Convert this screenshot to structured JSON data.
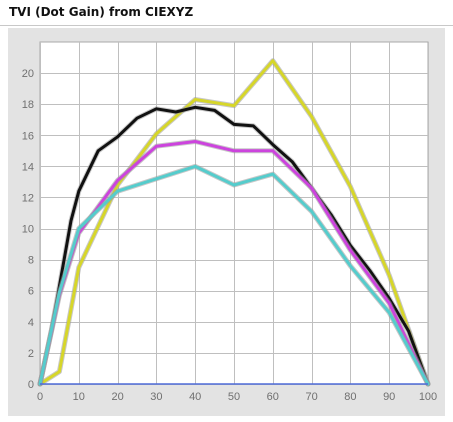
{
  "header": {
    "title": "TVI (Dot Gain) from CIEXYZ"
  },
  "colors": {
    "background": "#e3e3e3",
    "plot_area": "#ffffff",
    "grid": "#bfbfbf",
    "baseline": "#4f6bd8"
  },
  "chart_data": {
    "type": "line",
    "title": "TVI (Dot Gain) from CIEXYZ",
    "xlabel": "",
    "ylabel": "",
    "xlim": [
      0,
      100
    ],
    "ylim": [
      0,
      22
    ],
    "x_ticks": [
      0,
      10,
      20,
      30,
      40,
      50,
      60,
      70,
      80,
      90,
      100
    ],
    "y_ticks": [
      0,
      2,
      4,
      6,
      8,
      10,
      12,
      14,
      16,
      18,
      20
    ],
    "grid": true,
    "legend": "none",
    "series": [
      {
        "color": "#d6d62a",
        "x": [
          0,
          5,
          10,
          20,
          30,
          40,
          50,
          60,
          70,
          80,
          90,
          100
        ],
        "values": [
          0,
          0.8,
          7.5,
          12.8,
          16.1,
          18.3,
          17.9,
          20.8,
          17.2,
          12.7,
          7.0,
          0
        ]
      },
      {
        "color": "#111111",
        "x": [
          0,
          3,
          5,
          8,
          10,
          15,
          20,
          25,
          30,
          35,
          40,
          45,
          50,
          55,
          60,
          65,
          70,
          75,
          80,
          85,
          90,
          95,
          100
        ],
        "values": [
          0,
          3.5,
          6.3,
          10.5,
          12.4,
          15.0,
          15.9,
          17.1,
          17.7,
          17.5,
          17.8,
          17.6,
          16.7,
          16.6,
          15.4,
          14.3,
          12.6,
          10.9,
          8.9,
          7.3,
          5.5,
          3.4,
          0
        ]
      },
      {
        "color": "#cc44dd",
        "x": [
          0,
          5,
          10,
          20,
          30,
          40,
          50,
          60,
          70,
          80,
          90,
          100
        ],
        "values": [
          0,
          5.7,
          9.7,
          13.1,
          15.3,
          15.6,
          15.0,
          15.0,
          12.6,
          8.6,
          5.2,
          0
        ]
      },
      {
        "color": "#55cccc",
        "x": [
          0,
          5,
          10,
          20,
          30,
          40,
          50,
          60,
          70,
          80,
          90,
          100
        ],
        "values": [
          0,
          5.9,
          10.0,
          12.4,
          13.2,
          14.0,
          12.8,
          13.5,
          11.1,
          7.6,
          4.6,
          0
        ]
      }
    ]
  }
}
